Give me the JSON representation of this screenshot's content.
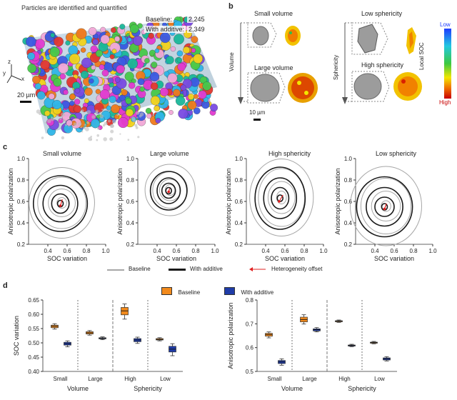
{
  "panels": {
    "a": "a",
    "b": "b",
    "c": "c",
    "d": "d"
  },
  "panel_a": {
    "title": "Particles are identified and quantified",
    "baseline_label": "Baseline:",
    "baseline_value": "2,245",
    "additive_label": "With additive:",
    "additive_value": "2,349",
    "scale_bar": "20 µm",
    "axis_z": "z",
    "axis_y": "y",
    "axis_x": "x"
  },
  "panel_b": {
    "small_volume": "Small volume",
    "large_volume": "Large volume",
    "low_sphericity": "Low sphericity",
    "high_sphericity": "High sphericity",
    "volume_axis": "Volume",
    "sphericity_axis": "Sphericity",
    "colorbar_title": "Local SOC",
    "colorbar_low": "Low",
    "colorbar_high": "High",
    "scale_bar": "10 µm",
    "colors": {
      "low": "#1e3cff",
      "mid": "#f2e600",
      "high": "#c80000"
    }
  },
  "panel_c": {
    "xlabel": "SOC variation",
    "ylabel": "Anisotropic polarization",
    "legend": {
      "baseline": "Baseline",
      "additive": "With additive",
      "offset": "Heterogeneity offset"
    },
    "colors": {
      "baseline": "#a6a6a6",
      "additive": "#1a1a1a",
      "offset": "#e02020"
    }
  },
  "chart_data": [
    {
      "type": "contour",
      "title": "Small volume",
      "xlabel": "SOC variation",
      "ylabel": "Anisotropic polarization",
      "xlim": [
        0.2,
        1.0
      ],
      "ylim": [
        0.2,
        1.0
      ],
      "xticks": [
        0.4,
        0.6,
        0.8,
        1.0
      ],
      "yticks": [
        0.2,
        0.4,
        0.6,
        0.8,
        1.0
      ],
      "center": [
        0.53,
        0.58
      ],
      "arrow": {
        "from": [
          0.55,
          0.62
        ],
        "to": [
          0.53,
          0.56
        ]
      },
      "baseline_levels": [
        [
          0.05,
          0.05
        ],
        [
          0.14,
          0.13
        ],
        [
          0.25,
          0.24
        ],
        [
          0.34,
          0.33
        ]
      ],
      "additive_levels": [
        [
          0.03,
          0.03
        ],
        [
          0.09,
          0.09
        ],
        [
          0.18,
          0.17
        ],
        [
          0.28,
          0.26
        ]
      ]
    },
    {
      "type": "contour",
      "title": "Large volume",
      "xlabel": "SOC variation",
      "ylabel": "Anisotropic polarization",
      "xlim": [
        0.2,
        1.0
      ],
      "ylim": [
        0.2,
        1.0
      ],
      "xticks": [
        0.4,
        0.6,
        0.8,
        1.0
      ],
      "yticks": [
        0.2,
        0.4,
        0.6,
        0.8,
        1.0
      ],
      "center": [
        0.52,
        0.7
      ],
      "arrow": {
        "from": [
          0.53,
          0.72
        ],
        "to": [
          0.52,
          0.69
        ]
      },
      "baseline_levels": [
        [
          0.05,
          0.05
        ],
        [
          0.11,
          0.1
        ],
        [
          0.18,
          0.17
        ],
        [
          0.26,
          0.24
        ]
      ],
      "additive_levels": [
        [
          0.03,
          0.03
        ],
        [
          0.07,
          0.07
        ],
        [
          0.12,
          0.12
        ],
        [
          0.19,
          0.18
        ]
      ]
    },
    {
      "type": "contour",
      "title": "High sphericity",
      "xlabel": "SOC variation",
      "ylabel": "Anisotropic polarization",
      "xlim": [
        0.2,
        1.0
      ],
      "ylim": [
        0.2,
        1.0
      ],
      "xticks": [
        0.4,
        0.6,
        0.8,
        1.0
      ],
      "yticks": [
        0.2,
        0.4,
        0.6,
        0.8,
        1.0
      ],
      "center": [
        0.55,
        0.63
      ],
      "arrow": {
        "from": [
          0.58,
          0.66
        ],
        "to": [
          0.54,
          0.6
        ]
      },
      "baseline_levels": [
        [
          0.05,
          0.06
        ],
        [
          0.14,
          0.15
        ],
        [
          0.24,
          0.27
        ],
        [
          0.33,
          0.36
        ]
      ],
      "additive_levels": [
        [
          0.03,
          0.03
        ],
        [
          0.09,
          0.1
        ],
        [
          0.17,
          0.19
        ],
        [
          0.26,
          0.29
        ]
      ]
    },
    {
      "type": "contour",
      "title": "Low sphericity",
      "xlabel": "SOC variation",
      "ylabel": "Anisotropic polarization",
      "xlim": [
        0.2,
        1.0
      ],
      "ylim": [
        0.2,
        1.0
      ],
      "xticks": [
        0.4,
        0.6,
        0.8,
        1.0
      ],
      "yticks": [
        0.2,
        0.4,
        0.6,
        0.8,
        1.0
      ],
      "center": [
        0.5,
        0.55
      ],
      "arrow": {
        "from": [
          0.52,
          0.58
        ],
        "to": [
          0.5,
          0.53
        ]
      },
      "baseline_levels": [
        [
          0.05,
          0.05
        ],
        [
          0.15,
          0.14
        ],
        [
          0.26,
          0.26
        ],
        [
          0.37,
          0.37
        ]
      ],
      "additive_levels": [
        [
          0.03,
          0.03
        ],
        [
          0.1,
          0.09
        ],
        [
          0.19,
          0.18
        ],
        [
          0.29,
          0.28
        ]
      ]
    },
    {
      "type": "box",
      "ylabel": "SOC variation",
      "ylim": [
        0.4,
        0.65
      ],
      "yticks": [
        0.4,
        0.45,
        0.5,
        0.55,
        0.6,
        0.65
      ],
      "categories": [
        "Small",
        "Large",
        "High",
        "Low"
      ],
      "groups": [
        "Volume",
        "Sphericity"
      ],
      "series": [
        {
          "name": "Baseline",
          "boxes": [
            [
              0.548,
              0.553,
              0.558,
              0.562,
              0.567
            ],
            [
              0.527,
              0.531,
              0.535,
              0.539,
              0.543
            ],
            [
              0.583,
              0.598,
              0.612,
              0.624,
              0.636
            ],
            [
              0.507,
              0.51,
              0.512,
              0.515,
              0.518
            ]
          ]
        },
        {
          "name": "With additive",
          "boxes": [
            [
              0.486,
              0.492,
              0.497,
              0.502,
              0.507
            ],
            [
              0.511,
              0.514,
              0.516,
              0.518,
              0.521
            ],
            [
              0.498,
              0.504,
              0.51,
              0.515,
              0.52
            ],
            [
              0.455,
              0.468,
              0.478,
              0.488,
              0.497
            ]
          ]
        }
      ]
    },
    {
      "type": "box",
      "ylabel": "Anisotropic polarization",
      "ylim": [
        0.5,
        0.8
      ],
      "yticks": [
        0.5,
        0.6,
        0.7,
        0.8
      ],
      "categories": [
        "Small",
        "Large",
        "High",
        "Low"
      ],
      "groups": [
        "Volume",
        "Sphericity"
      ],
      "series": [
        {
          "name": "Baseline",
          "boxes": [
            [
              0.641,
              0.648,
              0.655,
              0.66,
              0.666
            ],
            [
              0.699,
              0.708,
              0.718,
              0.728,
              0.738
            ],
            [
              0.706,
              0.709,
              0.711,
              0.713,
              0.716
            ],
            [
              0.616,
              0.619,
              0.621,
              0.623,
              0.626
            ]
          ]
        },
        {
          "name": "With additive",
          "boxes": [
            [
              0.526,
              0.533,
              0.54,
              0.546,
              0.553
            ],
            [
              0.666,
              0.67,
              0.675,
              0.679,
              0.684
            ],
            [
              0.604,
              0.607,
              0.609,
              0.611,
              0.614
            ],
            [
              0.544,
              0.548,
              0.553,
              0.557,
              0.562
            ]
          ]
        }
      ]
    }
  ],
  "panel_d": {
    "legend_baseline": "Baseline",
    "legend_additive": "With additive",
    "colors": {
      "baseline": "#f28a1c",
      "additive": "#1f3ca8"
    }
  }
}
